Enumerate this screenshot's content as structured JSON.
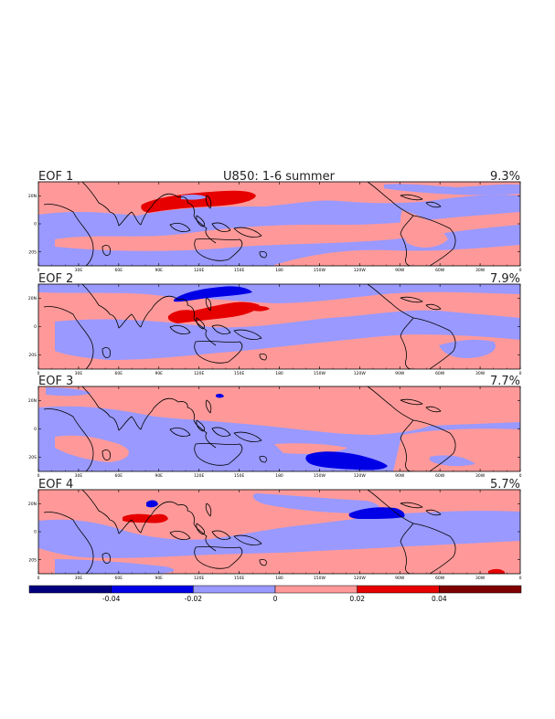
{
  "figure": {
    "title": "U850: 1-6 summer",
    "panels": [
      {
        "label": "EOF 1",
        "variance": "9.3%"
      },
      {
        "label": "EOF 2",
        "variance": "7.9%"
      },
      {
        "label": "EOF 3",
        "variance": "7.7%"
      },
      {
        "label": "EOF 4",
        "variance": "5.7%"
      }
    ],
    "lon_ticks": [
      "0",
      "30E",
      "60E",
      "90E",
      "120E",
      "150E",
      "180",
      "150W",
      "120W",
      "90W",
      "60W",
      "30W",
      "0"
    ],
    "lat_ticks": [
      "20N",
      "0",
      "20S"
    ]
  },
  "colorbar": {
    "levels": [
      -0.06,
      -0.04,
      -0.02,
      0,
      0.02,
      0.04,
      0.06
    ],
    "labels": [
      "-0.04",
      "-0.02",
      "0",
      "0.02",
      "0.04"
    ],
    "colors": [
      "#00007f",
      "#0000e6",
      "#9999ff",
      "#ff9999",
      "#e60000",
      "#7f0000"
    ]
  },
  "colors": {
    "negative_weak": "#9999ff",
    "positive_weak": "#ff9999",
    "negative_strong": "#0000e6",
    "positive_strong": "#e60000",
    "coastline": "#000000"
  }
}
